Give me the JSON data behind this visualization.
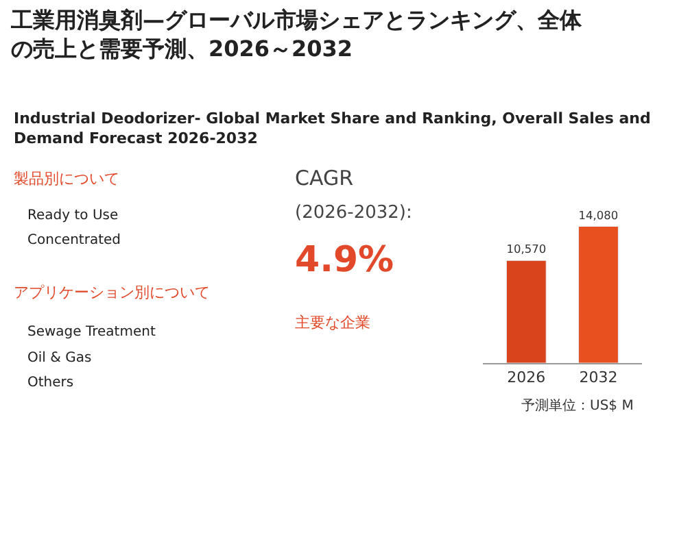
{
  "chart_data": {
    "type": "bar",
    "title": "工業用消臭剤—グローバル市場シェアとランキング、全体の売上と需要予測、2026～2032",
    "subtitle": "Industrial Deodorizer- Global Market Share and Ranking, Overall Sales and Demand Forecast 2026-2032",
    "categories": [
      "2026",
      "2032"
    ],
    "values": [
      10570,
      14080
    ],
    "colors": [
      "#d9441c",
      "#e8501f"
    ],
    "value_labels": [
      "10,570",
      "14,080"
    ],
    "tick_labels": "x",
    "annotations": [
      "製品別について",
      "Ready to Use",
      "Concentrated",
      "アプリケーション別について",
      "Sewage Treatment",
      "Oil & Gas",
      "Others",
      "CAGR",
      "(2026-2032):",
      "4.9%",
      "主要な企業",
      "予測単位：US$ M"
    ]
  }
}
